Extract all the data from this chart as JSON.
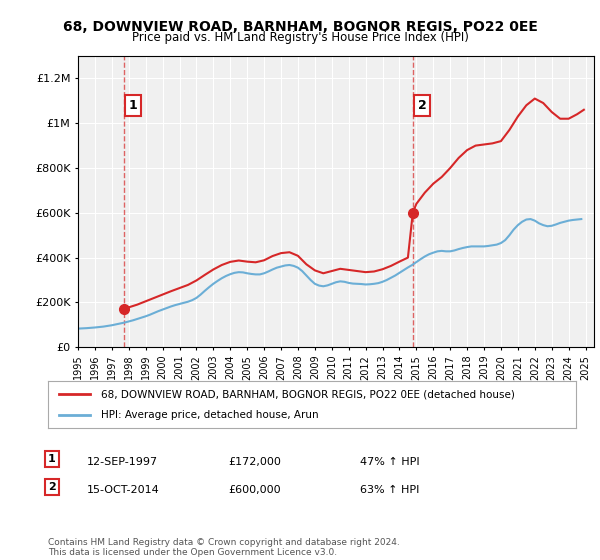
{
  "title": "68, DOWNVIEW ROAD, BARNHAM, BOGNOR REGIS, PO22 0EE",
  "subtitle": "Price paid vs. HM Land Registry's House Price Index (HPI)",
  "xlim_left": 1995.0,
  "xlim_right": 2025.5,
  "ylim_bottom": 0,
  "ylim_top": 1300000,
  "yticks": [
    0,
    200000,
    400000,
    600000,
    800000,
    1000000,
    1200000
  ],
  "ytick_labels": [
    "£0",
    "£200K",
    "£400K",
    "£600K",
    "£800K",
    "£1M",
    "£1.2M"
  ],
  "xticks": [
    1995,
    1996,
    1997,
    1998,
    1999,
    2000,
    2001,
    2002,
    2003,
    2004,
    2005,
    2006,
    2007,
    2008,
    2009,
    2010,
    2011,
    2012,
    2013,
    2014,
    2015,
    2016,
    2017,
    2018,
    2019,
    2020,
    2021,
    2022,
    2023,
    2024,
    2025
  ],
  "sale1_x": 1997.7,
  "sale1_y": 172000,
  "sale1_label": "1",
  "sale2_x": 2014.79,
  "sale2_y": 600000,
  "sale2_label": "2",
  "hpi_color": "#6baed6",
  "sale_color": "#d62728",
  "background_color": "#ffffff",
  "plot_bg_color": "#f0f0f0",
  "grid_color": "#ffffff",
  "legend_line1": "68, DOWNVIEW ROAD, BARNHAM, BOGNOR REGIS, PO22 0EE (detached house)",
  "legend_line2": "HPI: Average price, detached house, Arun",
  "annotation1_date": "12-SEP-1997",
  "annotation1_price": "£172,000",
  "annotation1_hpi": "47% ↑ HPI",
  "annotation2_date": "15-OCT-2014",
  "annotation2_price": "£600,000",
  "annotation2_hpi": "63% ↑ HPI",
  "footer": "Contains HM Land Registry data © Crown copyright and database right 2024.\nThis data is licensed under the Open Government Licence v3.0.",
  "hpi_data_x": [
    1995.0,
    1995.25,
    1995.5,
    1995.75,
    1996.0,
    1996.25,
    1996.5,
    1996.75,
    1997.0,
    1997.25,
    1997.5,
    1997.75,
    1998.0,
    1998.25,
    1998.5,
    1998.75,
    1999.0,
    1999.25,
    1999.5,
    1999.75,
    2000.0,
    2000.25,
    2000.5,
    2000.75,
    2001.0,
    2001.25,
    2001.5,
    2001.75,
    2002.0,
    2002.25,
    2002.5,
    2002.75,
    2003.0,
    2003.25,
    2003.5,
    2003.75,
    2004.0,
    2004.25,
    2004.5,
    2004.75,
    2005.0,
    2005.25,
    2005.5,
    2005.75,
    2006.0,
    2006.25,
    2006.5,
    2006.75,
    2007.0,
    2007.25,
    2007.5,
    2007.75,
    2008.0,
    2008.25,
    2008.5,
    2008.75,
    2009.0,
    2009.25,
    2009.5,
    2009.75,
    2010.0,
    2010.25,
    2010.5,
    2010.75,
    2011.0,
    2011.25,
    2011.5,
    2011.75,
    2012.0,
    2012.25,
    2012.5,
    2012.75,
    2013.0,
    2013.25,
    2013.5,
    2013.75,
    2014.0,
    2014.25,
    2014.5,
    2014.75,
    2015.0,
    2015.25,
    2015.5,
    2015.75,
    2016.0,
    2016.25,
    2016.5,
    2016.75,
    2017.0,
    2017.25,
    2017.5,
    2017.75,
    2018.0,
    2018.25,
    2018.5,
    2018.75,
    2019.0,
    2019.25,
    2019.5,
    2019.75,
    2020.0,
    2020.25,
    2020.5,
    2020.75,
    2021.0,
    2021.25,
    2021.5,
    2021.75,
    2022.0,
    2022.25,
    2022.5,
    2022.75,
    2023.0,
    2023.25,
    2023.5,
    2023.75,
    2024.0,
    2024.25,
    2024.5,
    2024.75
  ],
  "hpi_data_y": [
    83000,
    84000,
    85000,
    86500,
    88000,
    90000,
    92000,
    95000,
    98000,
    102000,
    106000,
    110000,
    115000,
    120000,
    126000,
    132000,
    138000,
    145000,
    153000,
    161000,
    168000,
    175000,
    182000,
    188000,
    193000,
    198000,
    203000,
    210000,
    220000,
    235000,
    252000,
    268000,
    283000,
    296000,
    308000,
    318000,
    326000,
    332000,
    335000,
    334000,
    330000,
    327000,
    325000,
    325000,
    330000,
    338000,
    347000,
    355000,
    360000,
    365000,
    367000,
    363000,
    355000,
    340000,
    320000,
    300000,
    283000,
    275000,
    272000,
    276000,
    283000,
    290000,
    294000,
    292000,
    287000,
    284000,
    283000,
    282000,
    280000,
    281000,
    283000,
    286000,
    292000,
    300000,
    310000,
    320000,
    332000,
    344000,
    356000,
    367000,
    380000,
    393000,
    405000,
    415000,
    422000,
    428000,
    430000,
    428000,
    428000,
    432000,
    438000,
    443000,
    447000,
    450000,
    450000,
    450000,
    450000,
    452000,
    455000,
    458000,
    465000,
    478000,
    500000,
    525000,
    545000,
    560000,
    570000,
    572000,
    565000,
    553000,
    545000,
    540000,
    542000,
    548000,
    555000,
    560000,
    565000,
    568000,
    570000,
    572000
  ],
  "sold_line_data_x": [
    1997.7,
    1997.75,
    1998.0,
    1998.5,
    1999.0,
    1999.5,
    2000.0,
    2000.5,
    2001.0,
    2001.5,
    2002.0,
    2002.5,
    2003.0,
    2003.5,
    2004.0,
    2004.5,
    2005.0,
    2005.5,
    2006.0,
    2006.5,
    2007.0,
    2007.5,
    2008.0,
    2008.5,
    2009.0,
    2009.5,
    2010.0,
    2010.5,
    2011.0,
    2011.5,
    2012.0,
    2012.5,
    2013.0,
    2013.5,
    2014.0,
    2014.5,
    2014.79
  ],
  "sold_line_data_y": [
    172000,
    173500,
    178000,
    190000,
    205000,
    220000,
    235000,
    250000,
    264000,
    278000,
    298000,
    323000,
    347000,
    367000,
    381000,
    387000,
    382000,
    379000,
    388000,
    407000,
    420000,
    424000,
    408000,
    370000,
    343000,
    330000,
    340000,
    350000,
    345000,
    340000,
    335000,
    338000,
    348000,
    363000,
    382000,
    400000,
    600000
  ],
  "sold_line_data_x2": [
    2014.79,
    2015.0,
    2015.5,
    2016.0,
    2016.5,
    2017.0,
    2017.5,
    2018.0,
    2018.5,
    2019.0,
    2019.5,
    2020.0,
    2020.5,
    2021.0,
    2021.5,
    2022.0,
    2022.5,
    2023.0,
    2023.5,
    2024.0,
    2024.5,
    2024.9
  ],
  "sold_line_data_y2": [
    600000,
    640000,
    690000,
    730000,
    760000,
    800000,
    845000,
    880000,
    900000,
    905000,
    910000,
    920000,
    970000,
    1030000,
    1080000,
    1110000,
    1090000,
    1050000,
    1020000,
    1020000,
    1040000,
    1060000
  ]
}
